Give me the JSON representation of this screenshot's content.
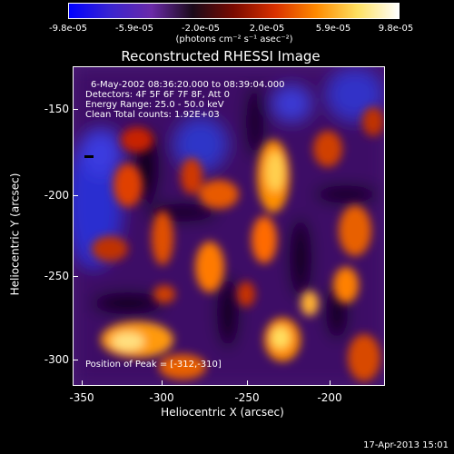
{
  "colorbar": {
    "ticks": [
      "-9.8e-05",
      "-5.9e-05",
      "-2.0e-05",
      "2.0e-05",
      "5.9e-05",
      "9.8e-05"
    ],
    "units": "(photons cm⁻² s⁻¹ asec⁻²)",
    "colors": [
      "#0000ff",
      "#3a24d0",
      "#6a2aa8",
      "#1a0a1a",
      "#7a0a00",
      "#d93000",
      "#ff8a00",
      "#ffe060",
      "#ffffff"
    ]
  },
  "plot": {
    "title": "Reconstructed RHESSI Image",
    "info": [
      "6-May-2002 08:36:20.000 to 08:39:04.000",
      "Detectors: 4F 5F 6F 7F 8F, Att 0",
      "Energy Range: 25.0 - 50.0 keV",
      "Clean    Total counts: 1.92E+03"
    ],
    "peak": "Position of Peak = [-312,-310]",
    "xlabel": "Heliocentric X (arcsec)",
    "ylabel": "Heliocentric Y (arcsec)",
    "xticks": [
      "-350",
      "-300",
      "-250",
      "-200"
    ],
    "yticks": [
      "-150",
      "-200",
      "-250",
      "-300"
    ]
  },
  "footer": {
    "timestamp": "17-Apr-2013 15:01"
  }
}
